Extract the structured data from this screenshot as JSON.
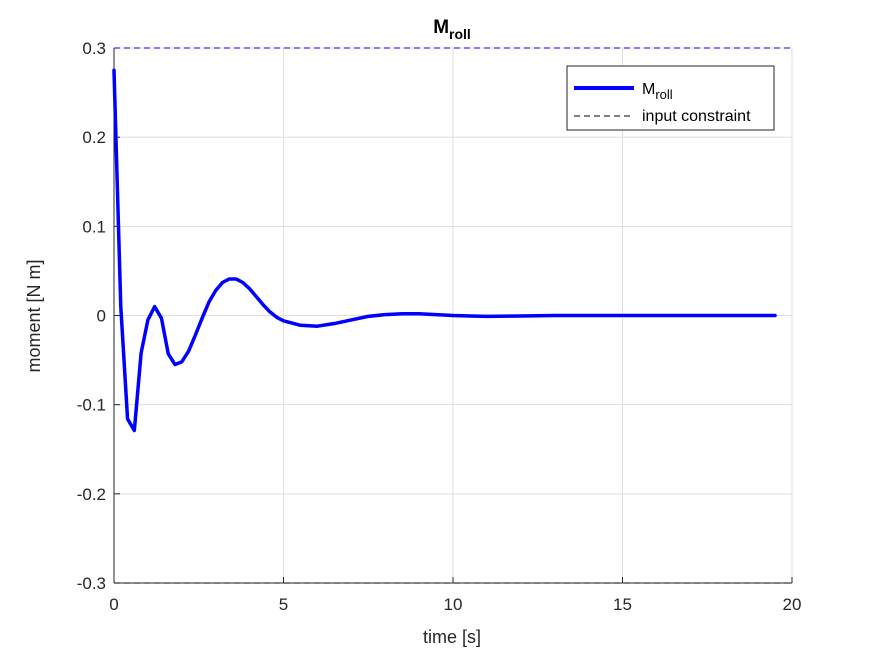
{
  "chart_data": {
    "type": "line",
    "title": {
      "main": "M",
      "sub": "roll"
    },
    "xlabel": "time [s]",
    "ylabel": "moment [N m]",
    "xlim": [
      0,
      20
    ],
    "ylim": [
      -0.3,
      0.3
    ],
    "xticks": [
      0,
      5,
      10,
      15,
      20
    ],
    "xtick_labels": [
      "0",
      "5",
      "10",
      "15",
      "20"
    ],
    "yticks": [
      -0.3,
      -0.2,
      -0.1,
      0,
      0.1,
      0.2,
      0.3
    ],
    "ytick_labels": [
      "-0.3",
      "-0.2",
      "-0.1",
      "0",
      "0.1",
      "0.2",
      "0.3"
    ],
    "grid": true,
    "legend_position": "top-right",
    "series": [
      {
        "name_main": "M",
        "name_sub": "roll",
        "color": "#0000ff",
        "style": "solid",
        "x": [
          0,
          0.2,
          0.4,
          0.6,
          0.8,
          1.0,
          1.2,
          1.4,
          1.6,
          1.8,
          2.0,
          2.2,
          2.4,
          2.6,
          2.8,
          3.0,
          3.2,
          3.4,
          3.6,
          3.8,
          4.0,
          4.2,
          4.4,
          4.6,
          4.8,
          5.0,
          5.5,
          6.0,
          6.5,
          7.0,
          7.5,
          8.0,
          8.5,
          9.0,
          9.5,
          10.0,
          10.5,
          11.0,
          12.0,
          13.0,
          14.0,
          15.0,
          16.0,
          17.0,
          18.0,
          19.0,
          19.5
        ],
        "y": [
          0.275,
          0.01,
          -0.116,
          -0.129,
          -0.042,
          -0.005,
          0.01,
          -0.003,
          -0.043,
          -0.055,
          -0.052,
          -0.04,
          -0.022,
          -0.003,
          0.015,
          0.028,
          0.037,
          0.041,
          0.041,
          0.037,
          0.03,
          0.021,
          0.012,
          0.004,
          -0.002,
          -0.006,
          -0.011,
          -0.012,
          -0.009,
          -0.005,
          -0.001,
          0.001,
          0.002,
          0.002,
          0.001,
          0.0,
          -0.0005,
          -0.001,
          -0.0005,
          0.0,
          0.0,
          0.0,
          0.0,
          0.0,
          0.0,
          0.0,
          0.0
        ]
      },
      {
        "name": "input constraint",
        "color": "#0000ff",
        "style": "dashed",
        "x": [
          0,
          20
        ],
        "y": [
          0.3,
          0.3
        ]
      },
      {
        "name": "input constraint",
        "color": "#000000",
        "style": "dashed",
        "x": [
          0,
          20
        ],
        "y": [
          -0.3,
          -0.3
        ]
      }
    ]
  }
}
